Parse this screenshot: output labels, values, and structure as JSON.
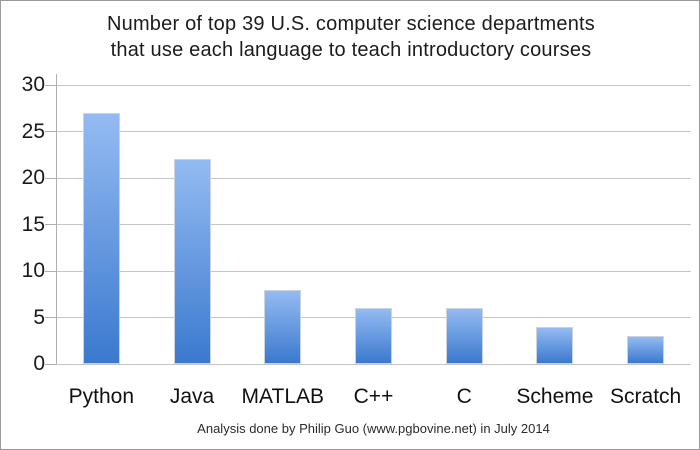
{
  "chart_data": {
    "type": "bar",
    "title_lines": [
      "Number of top 39 U.S. computer science departments",
      "that use each language to teach introductory courses"
    ],
    "categories": [
      "Python",
      "Java",
      "MATLAB",
      "C++",
      "C",
      "Scheme",
      "Scratch"
    ],
    "values": [
      27,
      22,
      8,
      6,
      6,
      4,
      3
    ],
    "y_ticks": [
      0,
      5,
      10,
      15,
      20,
      25,
      30
    ],
    "ylim": [
      0,
      30
    ],
    "xlabel": "",
    "ylabel": "",
    "grid": true,
    "legend_position": "none",
    "caption": "Analysis done by Philip Guo (www.pgbovine.net) in July 2014",
    "colors": {
      "bar_gradient_top": "#94bbf2",
      "bar_gradient_bottom": "#3b79ce",
      "bar_border": "#ccd3dc",
      "gridline": "#c5c5c5",
      "axis": "#b0b0b0",
      "text": "#1a1a1a"
    }
  }
}
